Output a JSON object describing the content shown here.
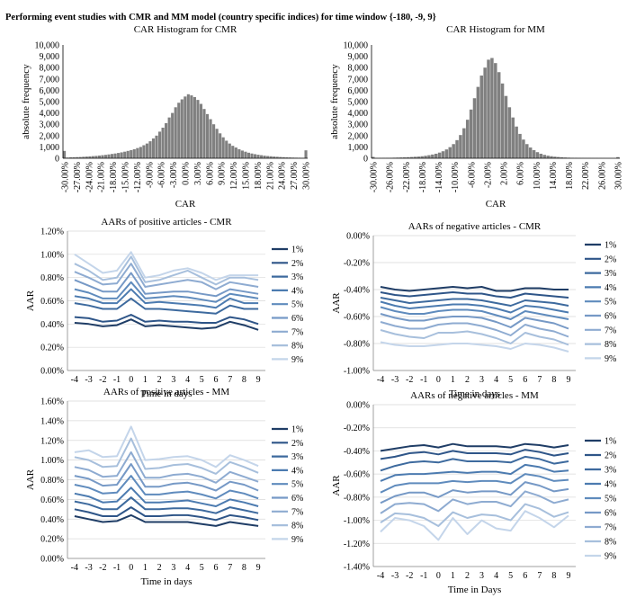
{
  "page": {
    "title": "Performing event studies with CMR and MM model (country specific indices) for time window {-180, -9, 9}"
  },
  "chart_data": [
    {
      "type": "bar",
      "title": "CAR Histogram for CMR",
      "xlabel": "CAR",
      "ylabel": "absolute frequency",
      "ylim": [
        0,
        10000
      ],
      "yticks": [
        "0",
        "1,000",
        "2,000",
        "3,000",
        "4,000",
        "5,000",
        "6,000",
        "7,000",
        "8,000",
        "9,000",
        "10,000"
      ],
      "xticks": [
        "-30.00%",
        "-27.00%",
        "-24.00%",
        "-21.00%",
        "-18.00%",
        "-15.00%",
        "-12.00%",
        "-9.00%",
        "-6.00%",
        "-3.00%",
        "0.00%",
        "3.00%",
        "6.00%",
        "9.00%",
        "12.00%",
        "15.00%",
        "18.00%",
        "21.00%",
        "24.00%",
        "27.00%",
        "30.00%"
      ],
      "bar_color": "#808080",
      "values": [
        650,
        60,
        80,
        90,
        100,
        110,
        130,
        150,
        170,
        190,
        210,
        240,
        270,
        300,
        340,
        380,
        420,
        470,
        520,
        580,
        650,
        720,
        800,
        900,
        1000,
        1150,
        1300,
        1500,
        1750,
        2000,
        2350,
        2700,
        3100,
        3600,
        4000,
        4500,
        4900,
        5200,
        5450,
        5650,
        5550,
        5400,
        5150,
        4800,
        4350,
        3900,
        3450,
        3000,
        2600,
        2200,
        1850,
        1550,
        1300,
        1100,
        950,
        800,
        680,
        580,
        490,
        420,
        360,
        310,
        270,
        230,
        200,
        175,
        150,
        130,
        110,
        95,
        80,
        70,
        60,
        50,
        45,
        40,
        700
      ]
    },
    {
      "type": "bar",
      "title": "CAR Histogram for MM",
      "xlabel": "CAR",
      "ylabel": "absolute frequency",
      "ylim": [
        0,
        10000
      ],
      "yticks": [
        "0",
        "1,000",
        "2,000",
        "3,000",
        "4,000",
        "5,000",
        "6,000",
        "7,000",
        "8,000",
        "9,000",
        "10,000"
      ],
      "xticks": [
        "-30.00%",
        "-26.00%",
        "-22.00%",
        "-18.00%",
        "-14.00%",
        "-10.00%",
        "-6.00%",
        "-2.00%",
        "2.00%",
        "6.00%",
        "10.00%",
        "14.00%",
        "18.00%",
        "22.00%",
        "26.00%",
        "30.00%"
      ],
      "bar_color": "#808080",
      "values": [
        120,
        20,
        25,
        30,
        35,
        40,
        50,
        60,
        70,
        80,
        95,
        110,
        130,
        150,
        180,
        220,
        270,
        330,
        400,
        500,
        620,
        780,
        980,
        1250,
        1600,
        2050,
        2650,
        3400,
        4300,
        5300,
        6300,
        7300,
        8000,
        8700,
        8850,
        8400,
        7600,
        6600,
        5500,
        4500,
        3600,
        2800,
        2150,
        1650,
        1250,
        950,
        720,
        540,
        400,
        300,
        230,
        180,
        140,
        110,
        85,
        65,
        50,
        40,
        32,
        25,
        20,
        16,
        13,
        10,
        8,
        7,
        6,
        5,
        4,
        3,
        100
      ]
    },
    {
      "type": "line",
      "title": "AARs of positive articles - CMR",
      "xlabel": "Time in days",
      "ylabel": "AAR",
      "x": [
        -4,
        -3,
        -2,
        -1,
        0,
        1,
        2,
        3,
        4,
        5,
        6,
        7,
        8,
        9
      ],
      "ylim": [
        0,
        1.2
      ],
      "yticks": [
        "0.00%",
        "0.20%",
        "0.40%",
        "0.60%",
        "0.80%",
        "1.00%",
        "1.20%"
      ],
      "series": [
        {
          "name": "1%",
          "color": "#1f3d66",
          "values": [
            0.41,
            0.4,
            0.38,
            0.39,
            0.44,
            0.38,
            0.39,
            0.38,
            0.37,
            0.36,
            0.37,
            0.42,
            0.39,
            0.35
          ]
        },
        {
          "name": "2%",
          "color": "#2e5588",
          "values": [
            0.46,
            0.45,
            0.42,
            0.43,
            0.48,
            0.42,
            0.43,
            0.42,
            0.42,
            0.41,
            0.41,
            0.46,
            0.44,
            0.4
          ]
        },
        {
          "name": "3%",
          "color": "#3d6a9e",
          "values": [
            0.58,
            0.56,
            0.53,
            0.53,
            0.62,
            0.53,
            0.53,
            0.52,
            0.51,
            0.5,
            0.49,
            0.56,
            0.53,
            0.53
          ]
        },
        {
          "name": "4%",
          "color": "#4c7bb0",
          "values": [
            0.64,
            0.62,
            0.58,
            0.58,
            0.7,
            0.58,
            0.59,
            0.58,
            0.57,
            0.56,
            0.54,
            0.62,
            0.58,
            0.58
          ]
        },
        {
          "name": "5%",
          "color": "#5f8bbd",
          "values": [
            0.7,
            0.67,
            0.62,
            0.62,
            0.76,
            0.62,
            0.63,
            0.64,
            0.63,
            0.61,
            0.59,
            0.66,
            0.64,
            0.62
          ]
        },
        {
          "name": "6%",
          "color": "#7699c6",
          "values": [
            0.78,
            0.73,
            0.68,
            0.68,
            0.84,
            0.66,
            0.67,
            0.68,
            0.68,
            0.66,
            0.64,
            0.7,
            0.68,
            0.66
          ]
        },
        {
          "name": "7%",
          "color": "#8eabd1",
          "values": [
            0.85,
            0.8,
            0.74,
            0.75,
            0.92,
            0.72,
            0.74,
            0.76,
            0.78,
            0.76,
            0.7,
            0.76,
            0.74,
            0.72
          ]
        },
        {
          "name": "8%",
          "color": "#a7bfdc",
          "values": [
            0.92,
            0.86,
            0.78,
            0.8,
            0.98,
            0.76,
            0.78,
            0.82,
            0.86,
            0.8,
            0.74,
            0.8,
            0.8,
            0.78
          ]
        },
        {
          "name": "9%",
          "color": "#c4d5ea",
          "values": [
            1.0,
            0.92,
            0.84,
            0.86,
            1.02,
            0.8,
            0.82,
            0.86,
            0.88,
            0.84,
            0.78,
            0.82,
            0.82,
            0.82
          ]
        }
      ]
    },
    {
      "type": "line",
      "title": "AARs of negative articles - CMR",
      "xlabel": "Time in days",
      "ylabel": "AAR",
      "x": [
        -4,
        -3,
        -2,
        -1,
        0,
        1,
        2,
        3,
        4,
        5,
        6,
        7,
        8,
        9
      ],
      "ylim": [
        -1.0,
        0
      ],
      "yticks": [
        "-1.00%",
        "-0.80%",
        "-0.60%",
        "-0.40%",
        "-0.20%",
        "0.00%"
      ],
      "series": [
        {
          "name": "1%",
          "color": "#1f3d66",
          "values": [
            -0.38,
            -0.4,
            -0.41,
            -0.4,
            -0.39,
            -0.38,
            -0.39,
            -0.38,
            -0.41,
            -0.41,
            -0.39,
            -0.39,
            -0.4,
            -0.4
          ]
        },
        {
          "name": "2%",
          "color": "#2e5588",
          "values": [
            -0.42,
            -0.44,
            -0.45,
            -0.44,
            -0.43,
            -0.42,
            -0.43,
            -0.43,
            -0.45,
            -0.46,
            -0.43,
            -0.44,
            -0.45,
            -0.46
          ]
        },
        {
          "name": "3%",
          "color": "#3d6a9e",
          "values": [
            -0.46,
            -0.48,
            -0.5,
            -0.49,
            -0.48,
            -0.47,
            -0.47,
            -0.48,
            -0.5,
            -0.52,
            -0.48,
            -0.49,
            -0.5,
            -0.52
          ]
        },
        {
          "name": "4%",
          "color": "#4c7bb0",
          "values": [
            -0.49,
            -0.52,
            -0.54,
            -0.53,
            -0.52,
            -0.51,
            -0.51,
            -0.52,
            -0.54,
            -0.57,
            -0.52,
            -0.53,
            -0.55,
            -0.57
          ]
        },
        {
          "name": "5%",
          "color": "#5f8bbd",
          "values": [
            -0.53,
            -0.56,
            -0.58,
            -0.58,
            -0.56,
            -0.55,
            -0.55,
            -0.56,
            -0.59,
            -0.62,
            -0.56,
            -0.58,
            -0.6,
            -0.62
          ]
        },
        {
          "name": "6%",
          "color": "#7699c6",
          "values": [
            -0.58,
            -0.61,
            -0.63,
            -0.63,
            -0.61,
            -0.6,
            -0.6,
            -0.61,
            -0.64,
            -0.68,
            -0.61,
            -0.63,
            -0.65,
            -0.69
          ]
        },
        {
          "name": "7%",
          "color": "#8eabd1",
          "values": [
            -0.64,
            -0.67,
            -0.69,
            -0.69,
            -0.66,
            -0.65,
            -0.65,
            -0.67,
            -0.7,
            -0.74,
            -0.66,
            -0.69,
            -0.71,
            -0.75
          ]
        },
        {
          "name": "8%",
          "color": "#a7bfdc",
          "values": [
            -0.7,
            -0.73,
            -0.75,
            -0.76,
            -0.72,
            -0.72,
            -0.71,
            -0.73,
            -0.76,
            -0.8,
            -0.72,
            -0.75,
            -0.77,
            -0.81
          ]
        },
        {
          "name": "9%",
          "color": "#c4d5ea",
          "values": [
            -0.79,
            -0.81,
            -0.82,
            -0.82,
            -0.81,
            -0.8,
            -0.8,
            -0.81,
            -0.82,
            -0.84,
            -0.8,
            -0.81,
            -0.83,
            -0.86
          ]
        }
      ]
    },
    {
      "type": "line",
      "title": "AARs of positive articles - MM",
      "xlabel": "Time in days",
      "ylabel": "AAR",
      "x": [
        -4,
        -3,
        -2,
        -1,
        0,
        1,
        2,
        3,
        4,
        5,
        6,
        7,
        8,
        9
      ],
      "ylim": [
        0,
        1.6
      ],
      "yticks": [
        "0.00%",
        "0.20%",
        "0.40%",
        "0.60%",
        "0.80%",
        "1.00%",
        "1.20%",
        "1.40%",
        "1.60%"
      ],
      "series": [
        {
          "name": "1%",
          "color": "#1f3d66",
          "values": [
            0.43,
            0.4,
            0.37,
            0.38,
            0.44,
            0.37,
            0.37,
            0.37,
            0.37,
            0.35,
            0.33,
            0.37,
            0.35,
            0.33
          ]
        },
        {
          "name": "2%",
          "color": "#2e5588",
          "values": [
            0.5,
            0.47,
            0.43,
            0.43,
            0.52,
            0.43,
            0.43,
            0.44,
            0.44,
            0.42,
            0.39,
            0.44,
            0.42,
            0.39
          ]
        },
        {
          "name": "3%",
          "color": "#3d6a9e",
          "values": [
            0.58,
            0.55,
            0.5,
            0.5,
            0.62,
            0.5,
            0.5,
            0.51,
            0.51,
            0.49,
            0.46,
            0.52,
            0.49,
            0.46
          ]
        },
        {
          "name": "4%",
          "color": "#4c7bb0",
          "values": [
            0.66,
            0.63,
            0.57,
            0.58,
            0.72,
            0.57,
            0.57,
            0.58,
            0.59,
            0.56,
            0.53,
            0.6,
            0.57,
            0.53
          ]
        },
        {
          "name": "5%",
          "color": "#5f8bbd",
          "values": [
            0.75,
            0.72,
            0.66,
            0.67,
            0.84,
            0.65,
            0.65,
            0.67,
            0.68,
            0.65,
            0.61,
            0.69,
            0.66,
            0.61
          ]
        },
        {
          "name": "6%",
          "color": "#7699c6",
          "values": [
            0.84,
            0.81,
            0.74,
            0.75,
            0.96,
            0.73,
            0.73,
            0.76,
            0.77,
            0.74,
            0.69,
            0.78,
            0.75,
            0.69
          ]
        },
        {
          "name": "7%",
          "color": "#8eabd1",
          "values": [
            0.93,
            0.9,
            0.83,
            0.84,
            1.08,
            0.82,
            0.82,
            0.85,
            0.86,
            0.83,
            0.77,
            0.88,
            0.83,
            0.78
          ]
        },
        {
          "name": "8%",
          "color": "#a7bfdc",
          "values": [
            1.03,
            1.0,
            0.93,
            0.94,
            1.22,
            0.91,
            0.92,
            0.95,
            0.96,
            0.92,
            0.86,
            0.98,
            0.93,
            0.87
          ]
        },
        {
          "name": "9%",
          "color": "#c4d5ea",
          "values": [
            1.08,
            1.1,
            1.03,
            1.04,
            1.34,
            1.0,
            1.01,
            1.03,
            1.04,
            1.0,
            0.93,
            1.05,
            1.0,
            0.94
          ]
        }
      ]
    },
    {
      "type": "line",
      "title": "AARs of negative articles - MM",
      "xlabel": "Time in Days",
      "ylabel": "AAR",
      "x": [
        -4,
        -3,
        -2,
        -1,
        0,
        1,
        2,
        3,
        4,
        5,
        6,
        7,
        8,
        9
      ],
      "ylim": [
        -1.4,
        0
      ],
      "yticks": [
        "-1.40%",
        "-1.20%",
        "-1.00%",
        "-0.80%",
        "-0.60%",
        "-0.40%",
        "-0.20%",
        "0.00%"
      ],
      "series": [
        {
          "name": "1%",
          "color": "#1f3d66",
          "values": [
            -0.4,
            -0.38,
            -0.36,
            -0.35,
            -0.37,
            -0.34,
            -0.36,
            -0.36,
            -0.36,
            -0.37,
            -0.34,
            -0.35,
            -0.37,
            -0.35
          ]
        },
        {
          "name": "2%",
          "color": "#2e5588",
          "values": [
            -0.47,
            -0.45,
            -0.42,
            -0.41,
            -0.43,
            -0.4,
            -0.42,
            -0.42,
            -0.42,
            -0.43,
            -0.39,
            -0.41,
            -0.44,
            -0.42
          ]
        },
        {
          "name": "3%",
          "color": "#3d6a9e",
          "values": [
            -0.57,
            -0.53,
            -0.5,
            -0.49,
            -0.5,
            -0.47,
            -0.49,
            -0.49,
            -0.49,
            -0.5,
            -0.45,
            -0.47,
            -0.51,
            -0.49
          ]
        },
        {
          "name": "4%",
          "color": "#4c7bb0",
          "values": [
            -0.66,
            -0.61,
            -0.6,
            -0.6,
            -0.59,
            -0.58,
            -0.59,
            -0.58,
            -0.58,
            -0.6,
            -0.52,
            -0.54,
            -0.58,
            -0.57
          ]
        },
        {
          "name": "5%",
          "color": "#5f8bbd",
          "values": [
            -0.76,
            -0.7,
            -0.68,
            -0.68,
            -0.68,
            -0.66,
            -0.67,
            -0.66,
            -0.66,
            -0.68,
            -0.6,
            -0.62,
            -0.66,
            -0.65
          ]
        },
        {
          "name": "6%",
          "color": "#7699c6",
          "values": [
            -0.85,
            -0.79,
            -0.76,
            -0.76,
            -0.8,
            -0.74,
            -0.76,
            -0.75,
            -0.75,
            -0.78,
            -0.67,
            -0.7,
            -0.75,
            -0.73
          ]
        },
        {
          "name": "7%",
          "color": "#8eabd1",
          "values": [
            -0.94,
            -0.86,
            -0.85,
            -0.86,
            -0.92,
            -0.82,
            -0.86,
            -0.84,
            -0.84,
            -0.88,
            -0.75,
            -0.79,
            -0.85,
            -0.82
          ]
        },
        {
          "name": "8%",
          "color": "#a7bfdc",
          "values": [
            -1.02,
            -0.94,
            -0.95,
            -0.98,
            -1.05,
            -0.93,
            -0.98,
            -0.95,
            -0.96,
            -1.0,
            -0.86,
            -0.9,
            -0.97,
            -0.93
          ]
        },
        {
          "name": "9%",
          "color": "#c4d5ea",
          "values": [
            -1.1,
            -0.98,
            -1.0,
            -1.05,
            -1.17,
            -0.98,
            -1.12,
            -1.0,
            -1.07,
            -1.09,
            -0.92,
            -0.98,
            -1.06,
            -0.96
          ]
        }
      ]
    }
  ]
}
